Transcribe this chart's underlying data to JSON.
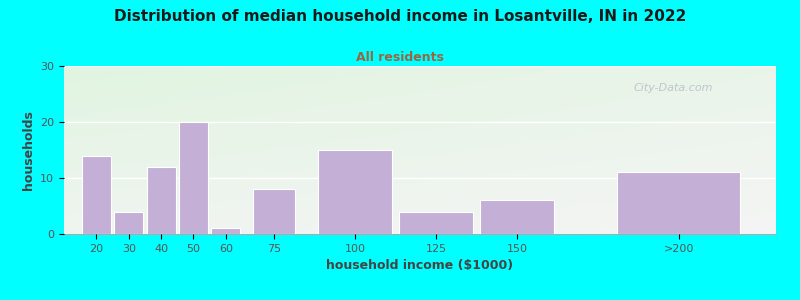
{
  "title": "Distribution of median household income in Losantville, IN in 2022",
  "subtitle": "All residents",
  "xlabel": "household income ($1000)",
  "ylabel": "households",
  "background_outer": "#00FFFF",
  "bar_color": "#c4afd6",
  "categories": [
    "20",
    "30",
    "40",
    "50",
    "60",
    "75",
    "100",
    "125",
    "150",
    ">200"
  ],
  "values": [
    14,
    4,
    12,
    20,
    1,
    8,
    15,
    4,
    6,
    11
  ],
  "bar_centers": [
    20,
    30,
    40,
    50,
    60,
    75,
    100,
    125,
    150,
    200
  ],
  "bar_widths": [
    9,
    9,
    9,
    9,
    9,
    13,
    23,
    23,
    23,
    38
  ],
  "xlim": [
    10,
    230
  ],
  "ylim": [
    0,
    30
  ],
  "yticks": [
    0,
    10,
    20,
    30
  ],
  "xtick_positions": [
    20,
    30,
    40,
    50,
    60,
    75,
    100,
    125,
    150,
    200
  ],
  "xtick_labels": [
    "20",
    "30",
    "40",
    "50",
    "60",
    "75",
    "100",
    "125",
    "150",
    ">200"
  ],
  "title_fontsize": 11,
  "subtitle_fontsize": 9,
  "label_fontsize": 9,
  "tick_fontsize": 8,
  "title_color": "#1a1a1a",
  "subtitle_color": "#996644",
  "label_color": "#444444",
  "tick_color": "#555555",
  "watermark_text": "City-Data.com",
  "watermark_color": "#bbbbcc"
}
